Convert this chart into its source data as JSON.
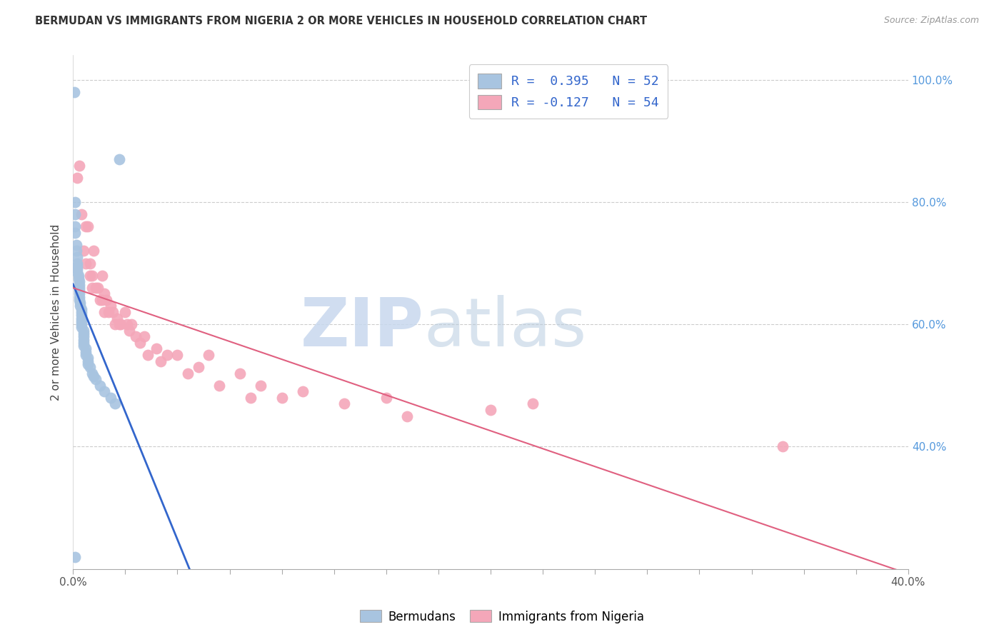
{
  "title": "BERMUDAN VS IMMIGRANTS FROM NIGERIA 2 OR MORE VEHICLES IN HOUSEHOLD CORRELATION CHART",
  "source": "Source: ZipAtlas.com",
  "ylabel": "2 or more Vehicles in Household",
  "xlim": [
    0.0,
    0.4
  ],
  "ylim": [
    0.2,
    1.04
  ],
  "ytick_positions": [
    0.4,
    0.6,
    0.8,
    1.0
  ],
  "ytick_labels_right": [
    "40.0%",
    "60.0%",
    "80.0%",
    "100.0%"
  ],
  "R_bermuda": 0.395,
  "N_bermuda": 52,
  "R_nigeria": -0.127,
  "N_nigeria": 54,
  "bermuda_color": "#a8c4e0",
  "nigeria_color": "#f4a7b9",
  "line_bermuda_color": "#3366cc",
  "line_nigeria_color": "#e06080",
  "legend_label_bermuda": "Bermudans",
  "legend_label_nigeria": "Immigrants from Nigeria",
  "watermark_zip": "ZIP",
  "watermark_atlas": "atlas",
  "bermuda_x": [
    0.0005,
    0.0008,
    0.001,
    0.001,
    0.001,
    0.0015,
    0.0015,
    0.002,
    0.002,
    0.002,
    0.002,
    0.002,
    0.0025,
    0.0025,
    0.003,
    0.003,
    0.003,
    0.003,
    0.003,
    0.003,
    0.003,
    0.0035,
    0.0035,
    0.004,
    0.004,
    0.004,
    0.004,
    0.004,
    0.004,
    0.004,
    0.005,
    0.005,
    0.005,
    0.005,
    0.005,
    0.005,
    0.006,
    0.006,
    0.006,
    0.007,
    0.007,
    0.007,
    0.008,
    0.009,
    0.01,
    0.011,
    0.013,
    0.015,
    0.018,
    0.02,
    0.001,
    0.022
  ],
  "bermuda_y": [
    0.98,
    0.8,
    0.78,
    0.76,
    0.75,
    0.73,
    0.72,
    0.71,
    0.7,
    0.695,
    0.69,
    0.685,
    0.68,
    0.675,
    0.67,
    0.665,
    0.66,
    0.655,
    0.65,
    0.645,
    0.64,
    0.635,
    0.63,
    0.625,
    0.62,
    0.615,
    0.61,
    0.605,
    0.6,
    0.595,
    0.59,
    0.585,
    0.58,
    0.575,
    0.57,
    0.565,
    0.56,
    0.555,
    0.55,
    0.545,
    0.54,
    0.535,
    0.53,
    0.52,
    0.515,
    0.51,
    0.5,
    0.49,
    0.48,
    0.47,
    0.22,
    0.87
  ],
  "nigeria_x": [
    0.002,
    0.003,
    0.004,
    0.005,
    0.006,
    0.006,
    0.007,
    0.008,
    0.008,
    0.009,
    0.009,
    0.01,
    0.011,
    0.012,
    0.013,
    0.014,
    0.014,
    0.015,
    0.015,
    0.016,
    0.017,
    0.018,
    0.019,
    0.02,
    0.021,
    0.022,
    0.023,
    0.025,
    0.026,
    0.027,
    0.028,
    0.03,
    0.032,
    0.034,
    0.036,
    0.04,
    0.042,
    0.045,
    0.05,
    0.055,
    0.06,
    0.065,
    0.07,
    0.08,
    0.085,
    0.09,
    0.1,
    0.11,
    0.13,
    0.15,
    0.16,
    0.2,
    0.22,
    0.34
  ],
  "nigeria_y": [
    0.84,
    0.86,
    0.78,
    0.72,
    0.76,
    0.7,
    0.76,
    0.68,
    0.7,
    0.68,
    0.66,
    0.72,
    0.66,
    0.66,
    0.64,
    0.68,
    0.64,
    0.65,
    0.62,
    0.64,
    0.62,
    0.63,
    0.62,
    0.6,
    0.61,
    0.6,
    0.6,
    0.62,
    0.6,
    0.59,
    0.6,
    0.58,
    0.57,
    0.58,
    0.55,
    0.56,
    0.54,
    0.55,
    0.55,
    0.52,
    0.53,
    0.55,
    0.5,
    0.52,
    0.48,
    0.5,
    0.48,
    0.49,
    0.47,
    0.48,
    0.45,
    0.46,
    0.47,
    0.4
  ]
}
